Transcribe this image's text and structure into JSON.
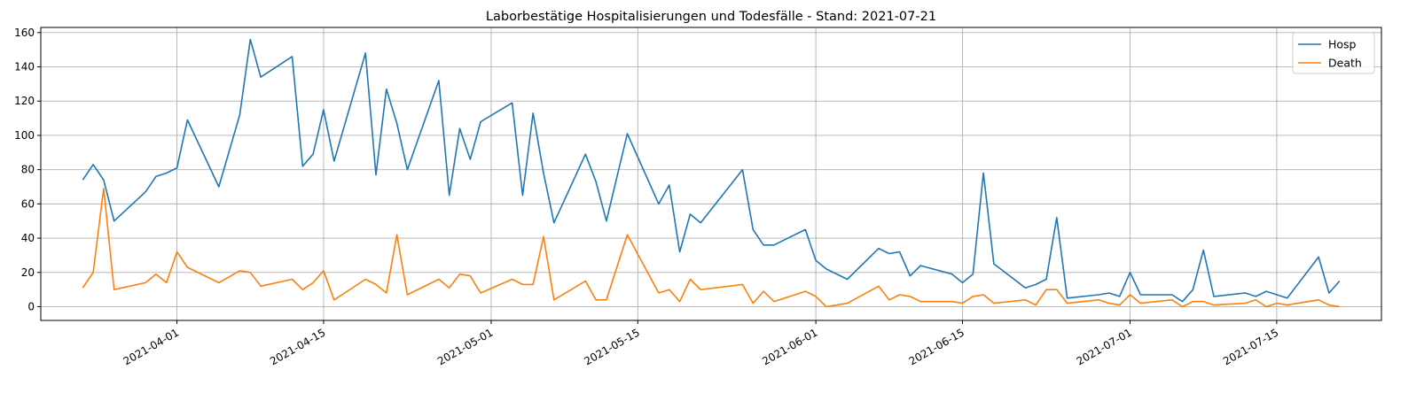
{
  "chart_data": {
    "type": "line",
    "title": "Laborbestätige Hospitalisierungen und Todesfälle - Stand: 2021-07-21",
    "xlabel": "",
    "ylabel": "",
    "ylim": [
      -8,
      163
    ],
    "xlim": [
      "2021-03-19",
      "2021-07-25"
    ],
    "grid": true,
    "legend_position": "upper right",
    "colors": {
      "Hosp": "#1f77b4",
      "Death": "#ff7f0e"
    },
    "x_ticks": [
      "2021-04-01",
      "2021-04-15",
      "2021-05-01",
      "2021-05-15",
      "2021-06-01",
      "2021-06-15",
      "2021-07-01",
      "2021-07-15"
    ],
    "y_ticks": [
      0,
      20,
      40,
      60,
      80,
      100,
      120,
      140,
      160
    ],
    "series": [
      {
        "name": "Hosp",
        "x": [
          "2021-03-23",
          "2021-03-24",
          "2021-03-25",
          "2021-03-26",
          "2021-03-29",
          "2021-03-30",
          "2021-03-31",
          "2021-04-01",
          "2021-04-02",
          "2021-04-05",
          "2021-04-07",
          "2021-04-08",
          "2021-04-09",
          "2021-04-12",
          "2021-04-13",
          "2021-04-14",
          "2021-04-15",
          "2021-04-16",
          "2021-04-19",
          "2021-04-20",
          "2021-04-21",
          "2021-04-22",
          "2021-04-23",
          "2021-04-26",
          "2021-04-27",
          "2021-04-28",
          "2021-04-29",
          "2021-04-30",
          "2021-05-03",
          "2021-05-04",
          "2021-05-05",
          "2021-05-06",
          "2021-05-07",
          "2021-05-10",
          "2021-05-11",
          "2021-05-12",
          "2021-05-14",
          "2021-05-17",
          "2021-05-18",
          "2021-05-19",
          "2021-05-20",
          "2021-05-21",
          "2021-05-25",
          "2021-05-26",
          "2021-05-27",
          "2021-05-28",
          "2021-05-31",
          "2021-06-01",
          "2021-06-02",
          "2021-06-04",
          "2021-06-07",
          "2021-06-08",
          "2021-06-09",
          "2021-06-10",
          "2021-06-11",
          "2021-06-14",
          "2021-06-15",
          "2021-06-16",
          "2021-06-17",
          "2021-06-18",
          "2021-06-21",
          "2021-06-22",
          "2021-06-23",
          "2021-06-24",
          "2021-06-25",
          "2021-06-28",
          "2021-06-29",
          "2021-06-30",
          "2021-07-01",
          "2021-07-02",
          "2021-07-05",
          "2021-07-06",
          "2021-07-07",
          "2021-07-08",
          "2021-07-09",
          "2021-07-12",
          "2021-07-13",
          "2021-07-14",
          "2021-07-16",
          "2021-07-19",
          "2021-07-20",
          "2021-07-21"
        ],
        "values": [
          74,
          83,
          74,
          50,
          67,
          76,
          78,
          81,
          109,
          70,
          112,
          156,
          134,
          146,
          82,
          89,
          115,
          85,
          148,
          77,
          127,
          107,
          80,
          132,
          65,
          104,
          86,
          108,
          119,
          65,
          113,
          78,
          49,
          89,
          73,
          50,
          101,
          60,
          71,
          32,
          54,
          49,
          80,
          45,
          36,
          36,
          45,
          27,
          22,
          16,
          34,
          31,
          32,
          18,
          24,
          19,
          14,
          19,
          78,
          25,
          11,
          13,
          16,
          52,
          5,
          7,
          8,
          6,
          20,
          7,
          7,
          3,
          10,
          33,
          6,
          8,
          6,
          9,
          5,
          29,
          8,
          15
        ]
      },
      {
        "name": "Death",
        "x": [
          "2021-03-23",
          "2021-03-24",
          "2021-03-25",
          "2021-03-26",
          "2021-03-29",
          "2021-03-30",
          "2021-03-31",
          "2021-04-01",
          "2021-04-02",
          "2021-04-05",
          "2021-04-07",
          "2021-04-08",
          "2021-04-09",
          "2021-04-12",
          "2021-04-13",
          "2021-04-14",
          "2021-04-15",
          "2021-04-16",
          "2021-04-19",
          "2021-04-20",
          "2021-04-21",
          "2021-04-22",
          "2021-04-23",
          "2021-04-26",
          "2021-04-27",
          "2021-04-28",
          "2021-04-29",
          "2021-04-30",
          "2021-05-03",
          "2021-05-04",
          "2021-05-05",
          "2021-05-06",
          "2021-05-07",
          "2021-05-10",
          "2021-05-11",
          "2021-05-12",
          "2021-05-14",
          "2021-05-17",
          "2021-05-18",
          "2021-05-19",
          "2021-05-20",
          "2021-05-21",
          "2021-05-25",
          "2021-05-26",
          "2021-05-27",
          "2021-05-28",
          "2021-05-31",
          "2021-06-01",
          "2021-06-02",
          "2021-06-03",
          "2021-06-04",
          "2021-06-07",
          "2021-06-08",
          "2021-06-09",
          "2021-06-10",
          "2021-06-11",
          "2021-06-14",
          "2021-06-15",
          "2021-06-16",
          "2021-06-17",
          "2021-06-18",
          "2021-06-21",
          "2021-06-22",
          "2021-06-23",
          "2021-06-24",
          "2021-06-25",
          "2021-06-28",
          "2021-06-29",
          "2021-06-30",
          "2021-07-01",
          "2021-07-02",
          "2021-07-05",
          "2021-07-06",
          "2021-07-07",
          "2021-07-08",
          "2021-07-09",
          "2021-07-12",
          "2021-07-13",
          "2021-07-14",
          "2021-07-15",
          "2021-07-16",
          "2021-07-19",
          "2021-07-20",
          "2021-07-21"
        ],
        "values": [
          11,
          20,
          69,
          10,
          14,
          19,
          14,
          32,
          23,
          14,
          21,
          20,
          12,
          16,
          10,
          14,
          21,
          4,
          16,
          13,
          8,
          42,
          7,
          16,
          11,
          19,
          18,
          8,
          16,
          13,
          13,
          41,
          4,
          15,
          4,
          4,
          42,
          8,
          10,
          3,
          16,
          10,
          13,
          2,
          9,
          3,
          9,
          6,
          0,
          1,
          2,
          12,
          4,
          7,
          6,
          3,
          3,
          2,
          6,
          7,
          2,
          4,
          1,
          10,
          10,
          2,
          4,
          2,
          1,
          7,
          2,
          4,
          0,
          3,
          3,
          1,
          2,
          4,
          0,
          2,
          1,
          4,
          1,
          0
        ]
      }
    ]
  }
}
